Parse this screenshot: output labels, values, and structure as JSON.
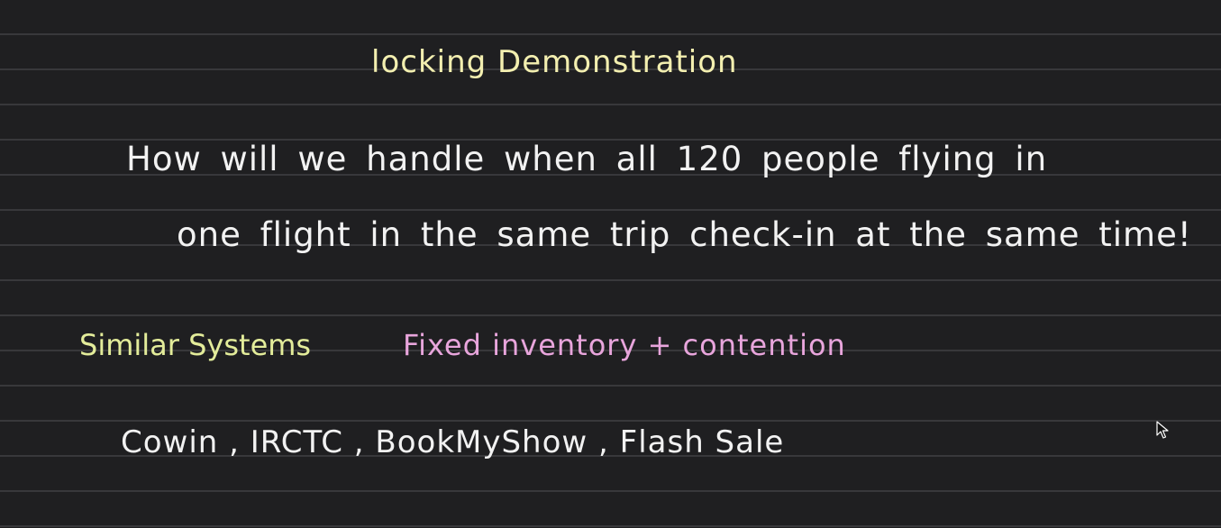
{
  "title": "locking Demonstration",
  "question": {
    "line1": "How will we handle when all 120 people flying in",
    "line2": "one flight in the same trip check-in at the same time!"
  },
  "similar": {
    "label": "Similar Systems",
    "description": "Fixed inventory + contention"
  },
  "examples": "Cowin , IRCTC , BookMyShow , Flash Sale",
  "colors": {
    "background": "#1f1f21",
    "rule_line": "#38383b",
    "title": "#f3efb0",
    "body_text": "#f2f2f2",
    "label": "#e3ec9a",
    "description": "#e8a5dc"
  }
}
